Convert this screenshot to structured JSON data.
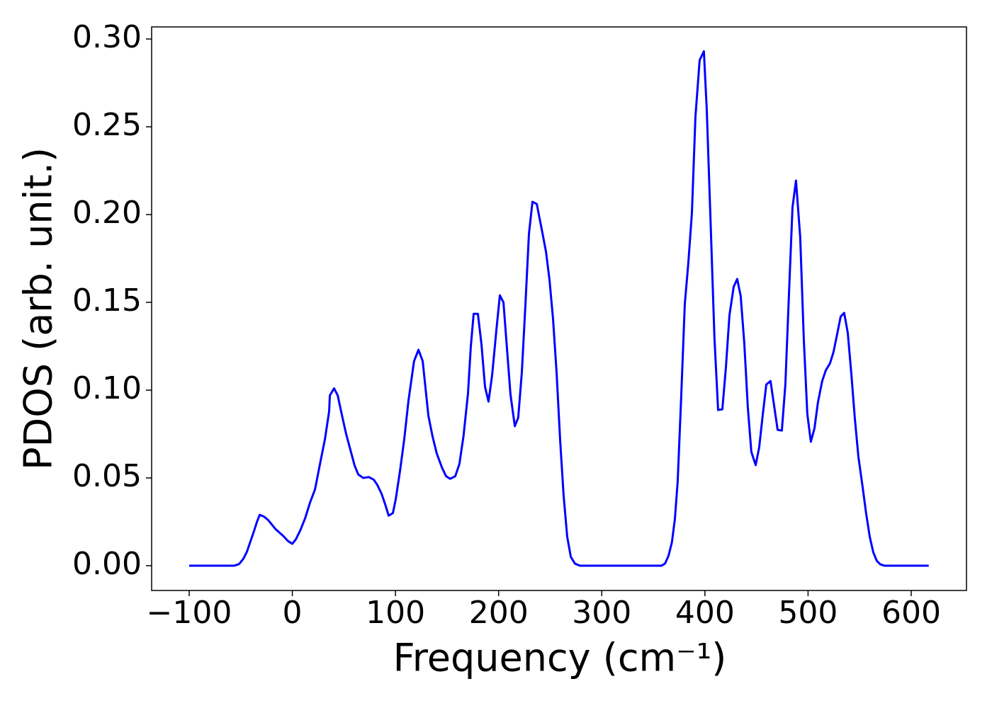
{
  "chart_data": {
    "type": "line",
    "x_label": "Frequency (cm⁻¹)",
    "y_label": "PDOS (arb. unit.)",
    "xlim": [
      -136.4,
      653.6
    ],
    "ylim": [
      -0.0141,
      0.3069
    ],
    "xticks": [
      {
        "value": -100,
        "label": "−100"
      },
      0,
      100,
      200,
      300,
      400,
      500,
      600
    ],
    "yticks": [
      {
        "value": 0,
        "label": "0.00"
      },
      {
        "value": 0.05,
        "label": "0.05"
      },
      {
        "value": 0.1,
        "label": "0.10"
      },
      {
        "value": 0.15,
        "label": "0.15"
      },
      {
        "value": 0.2,
        "label": "0.20"
      },
      {
        "value": 0.25,
        "label": "0.25"
      },
      {
        "value": 0.3,
        "label": "0.30"
      }
    ],
    "grid": false,
    "series": [
      {
        "color": "#0000ff",
        "x": [
          -100,
          -56.3,
          -51.5,
          -47.4,
          -44,
          -40.5,
          -37,
          -34.3,
          -31.6,
          -27.5,
          -23.4,
          -16.5,
          -8.9,
          -4.1,
          0,
          3.4,
          7.6,
          12.4,
          17.2,
          22,
          27.5,
          31.6,
          35.7,
          36.4,
          40.5,
          44,
          48,
          52.2,
          56.3,
          60.4,
          63.9,
          68.7,
          74.2,
          79,
          82.4,
          86.5,
          90,
          93.4,
          97.5,
          100.3,
          104.4,
          108.5,
          112.6,
          118,
          122.3,
          126.4,
          131.9,
          136,
          140,
          145,
          149,
          153,
          158,
          162,
          166,
          170.3,
          173,
          175.8,
          179.9,
          183.4,
          186.8,
          190.2,
          193.7,
          197.8,
          201.2,
          204.7,
          208,
          211.5,
          215.7,
          219,
          222.5,
          226,
          229.4,
          232.8,
          237,
          241,
          245.9,
          249.3,
          252.7,
          256.2,
          259.6,
          263,
          266.5,
          270,
          274,
          278.8,
          357.8,
          361.3,
          364.7,
          368,
          370.9,
          373.6,
          377,
          380.5,
          384,
          387.4,
          390.8,
          394.9,
          399,
          401.8,
          405.2,
          409.3,
          412.8,
          416.9,
          420.3,
          423.8,
          427.9,
          431.3,
          434.7,
          438.2,
          441.6,
          445,
          449.2,
          452.6,
          456,
          459.5,
          463.6,
          467,
          470.5,
          474.6,
          478,
          481.5,
          484.9,
          488.3,
          492.4,
          495.9,
          499.3,
          502.7,
          506.2,
          509.6,
          513.7,
          517.2,
          521.3,
          524.7,
          528.2,
          531.6,
          535,
          538.5,
          541.9,
          545.3,
          548.8,
          552.9,
          556.3,
          559.8,
          563.2,
          566.6,
          570,
          574.2,
          617
        ],
        "values": [
          0,
          0,
          0.001,
          0.004,
          0.008,
          0.014,
          0.02,
          0.025,
          0.029,
          0.028,
          0.026,
          0.021,
          0.017,
          0.014,
          0.0125,
          0.015,
          0.02,
          0.027,
          0.036,
          0.0435,
          0.06,
          0.072,
          0.088,
          0.097,
          0.101,
          0.097,
          0.086,
          0.075,
          0.066,
          0.057,
          0.052,
          0.05,
          0.0505,
          0.049,
          0.046,
          0.041,
          0.035,
          0.0285,
          0.03,
          0.038,
          0.054,
          0.072,
          0.094,
          0.1165,
          0.123,
          0.1165,
          0.0855,
          0.0735,
          0.064,
          0.056,
          0.051,
          0.0495,
          0.051,
          0.058,
          0.074,
          0.098,
          0.1245,
          0.1435,
          0.1435,
          0.126,
          0.102,
          0.0935,
          0.1085,
          0.134,
          0.154,
          0.15,
          0.1245,
          0.0975,
          0.0795,
          0.0843,
          0.11,
          0.1488,
          0.189,
          0.2073,
          0.206,
          0.194,
          0.179,
          0.163,
          0.141,
          0.11,
          0.072,
          0.04,
          0.0165,
          0.005,
          0.0012,
          0,
          0,
          0.0012,
          0.0056,
          0.0133,
          0.0266,
          0.048,
          0.096,
          0.149,
          0.173,
          0.201,
          0.2556,
          0.288,
          0.293,
          0.2597,
          0.201,
          0.129,
          0.0887,
          0.0891,
          0.1125,
          0.1427,
          0.1589,
          0.1633,
          0.1536,
          0.1266,
          0.0903,
          0.0649,
          0.0573,
          0.0673,
          0.0855,
          0.1032,
          0.1052,
          0.0915,
          0.0774,
          0.077,
          0.1032,
          0.1548,
          0.204,
          0.2194,
          0.1871,
          0.1286,
          0.0863,
          0.0706,
          0.0782,
          0.0931,
          0.1052,
          0.1113,
          0.1153,
          0.1218,
          0.1319,
          0.1419,
          0.144,
          0.1327,
          0.1097,
          0.0843,
          0.0621,
          0.0448,
          0.0298,
          0.0165,
          0.0077,
          0.0028,
          0.0008,
          0,
          0
        ]
      }
    ]
  }
}
